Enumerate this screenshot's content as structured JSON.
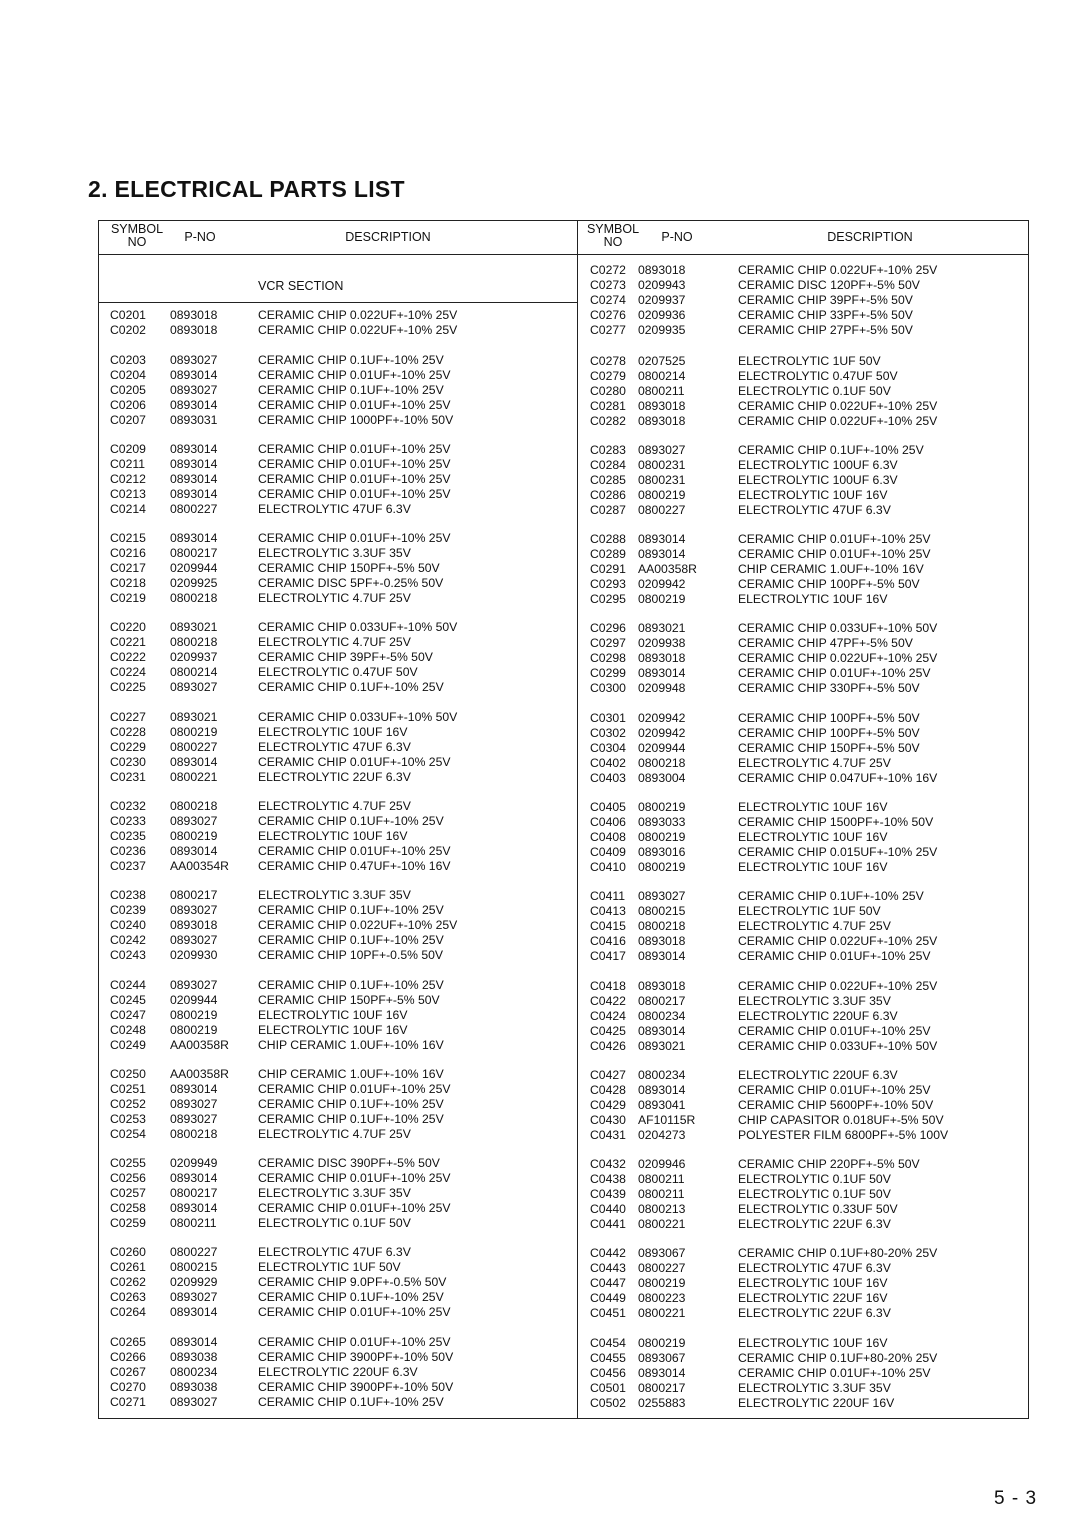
{
  "title": "2. ELECTRICAL PARTS LIST",
  "headers": {
    "symbol": "SYMBOL",
    "no": "NO",
    "pno": "P-NO",
    "description": "DESCRIPTION"
  },
  "left_column": {
    "section_title": "VCR SECTION",
    "groups": [
      [
        [
          "C0201",
          "0893018",
          "CERAMIC CHIP 0.022UF+-10% 25V"
        ],
        [
          "C0202",
          "0893018",
          "CERAMIC CHIP 0.022UF+-10% 25V"
        ]
      ],
      [
        [
          "C0203",
          "0893027",
          "CERAMIC CHIP 0.1UF+-10% 25V"
        ],
        [
          "C0204",
          "0893014",
          "CERAMIC CHIP 0.01UF+-10% 25V"
        ],
        [
          "C0205",
          "0893027",
          "CERAMIC CHIP 0.1UF+-10% 25V"
        ],
        [
          "C0206",
          "0893014",
          "CERAMIC CHIP 0.01UF+-10% 25V"
        ],
        [
          "C0207",
          "0893031",
          "CERAMIC CHIP 1000PF+-10% 50V"
        ]
      ],
      [
        [
          "C0209",
          "0893014",
          "CERAMIC CHIP 0.01UF+-10% 25V"
        ],
        [
          "C0211",
          "0893014",
          "CERAMIC CHIP 0.01UF+-10% 25V"
        ],
        [
          "C0212",
          "0893014",
          "CERAMIC CHIP 0.01UF+-10% 25V"
        ],
        [
          "C0213",
          "0893014",
          "CERAMIC CHIP 0.01UF+-10% 25V"
        ],
        [
          "C0214",
          "0800227",
          "ELECTROLYTIC 47UF 6.3V"
        ]
      ],
      [
        [
          "C0215",
          "0893014",
          "CERAMIC CHIP 0.01UF+-10% 25V"
        ],
        [
          "C0216",
          "0800217",
          "ELECTROLYTIC 3.3UF 35V"
        ],
        [
          "C0217",
          "0209944",
          "CERAMIC CHIP 150PF+-5% 50V"
        ],
        [
          "C0218",
          "0209925",
          "CERAMIC DISC 5PF+-0.25% 50V"
        ],
        [
          "C0219",
          "0800218",
          "ELECTROLYTIC 4.7UF 25V"
        ]
      ],
      [
        [
          "C0220",
          "0893021",
          "CERAMIC CHIP 0.033UF+-10% 50V"
        ],
        [
          "C0221",
          "0800218",
          "ELECTROLYTIC 4.7UF 25V"
        ],
        [
          "C0222",
          "0209937",
          "CERAMIC CHIP 39PF+-5% 50V"
        ],
        [
          "C0224",
          "0800214",
          "ELECTROLYTIC 0.47UF 50V"
        ],
        [
          "C0225",
          "0893027",
          "CERAMIC CHIP 0.1UF+-10% 25V"
        ]
      ],
      [
        [
          "C0227",
          "0893021",
          "CERAMIC CHIP 0.033UF+-10% 50V"
        ],
        [
          "C0228",
          "0800219",
          "ELECTROLYTIC 10UF 16V"
        ],
        [
          "C0229",
          "0800227",
          "ELECTROLYTIC 47UF 6.3V"
        ],
        [
          "C0230",
          "0893014",
          "CERAMIC CHIP 0.01UF+-10% 25V"
        ],
        [
          "C0231",
          "0800221",
          "ELECTROLYTIC 22UF 6.3V"
        ]
      ],
      [
        [
          "C0232",
          "0800218",
          "ELECTROLYTIC 4.7UF 25V"
        ],
        [
          "C0233",
          "0893027",
          "CERAMIC CHIP 0.1UF+-10% 25V"
        ],
        [
          "C0235",
          "0800219",
          "ELECTROLYTIC 10UF 16V"
        ],
        [
          "C0236",
          "0893014",
          "CERAMIC CHIP 0.01UF+-10% 25V"
        ],
        [
          "C0237",
          "AA00354R",
          "CERAMIC CHIP 0.47UF+-10% 16V"
        ]
      ],
      [
        [
          "C0238",
          "0800217",
          "ELECTROLYTIC 3.3UF 35V"
        ],
        [
          "C0239",
          "0893027",
          "CERAMIC CHIP 0.1UF+-10% 25V"
        ],
        [
          "C0240",
          "0893018",
          "CERAMIC CHIP 0.022UF+-10% 25V"
        ],
        [
          "C0242",
          "0893027",
          "CERAMIC CHIP 0.1UF+-10% 25V"
        ],
        [
          "C0243",
          "0209930",
          "CERAMIC CHIP 10PF+-0.5% 50V"
        ]
      ],
      [
        [
          "C0244",
          "0893027",
          "CERAMIC CHIP 0.1UF+-10% 25V"
        ],
        [
          "C0245",
          "0209944",
          "CERAMIC CHIP 150PF+-5% 50V"
        ],
        [
          "C0247",
          "0800219",
          "ELECTROLYTIC 10UF 16V"
        ],
        [
          "C0248",
          "0800219",
          "ELECTROLYTIC 10UF 16V"
        ],
        [
          "C0249",
          "AA00358R",
          "CHIP CERAMIC 1.0UF+-10% 16V"
        ]
      ],
      [
        [
          "C0250",
          "AA00358R",
          "CHIP CERAMIC 1.0UF+-10% 16V"
        ],
        [
          "C0251",
          "0893014",
          "CERAMIC CHIP 0.01UF+-10% 25V"
        ],
        [
          "C0252",
          "0893027",
          "CERAMIC CHIP 0.1UF+-10% 25V"
        ],
        [
          "C0253",
          "0893027",
          "CERAMIC CHIP 0.1UF+-10% 25V"
        ],
        [
          "C0254",
          "0800218",
          "ELECTROLYTIC 4.7UF 25V"
        ]
      ],
      [
        [
          "C0255",
          "0209949",
          "CERAMIC DISC 390PF+-5% 50V"
        ],
        [
          "C0256",
          "0893014",
          "CERAMIC CHIP 0.01UF+-10% 25V"
        ],
        [
          "C0257",
          "0800217",
          "ELECTROLYTIC 3.3UF 35V"
        ],
        [
          "C0258",
          "0893014",
          "CERAMIC CHIP 0.01UF+-10% 25V"
        ],
        [
          "C0259",
          "0800211",
          "ELECTROLYTIC 0.1UF 50V"
        ]
      ],
      [
        [
          "C0260",
          "0800227",
          "ELECTROLYTIC 47UF 6.3V"
        ],
        [
          "C0261",
          "0800215",
          "ELECTROLYTIC 1UF 50V"
        ],
        [
          "C0262",
          "0209929",
          "CERAMIC CHIP 9.0PF+-0.5% 50V"
        ],
        [
          "C0263",
          "0893027",
          "CERAMIC CHIP 0.1UF+-10% 25V"
        ],
        [
          "C0264",
          "0893014",
          "CERAMIC CHIP 0.01UF+-10% 25V"
        ]
      ],
      [
        [
          "C0265",
          "0893014",
          "CERAMIC CHIP 0.01UF+-10% 25V"
        ],
        [
          "C0266",
          "0893038",
          "CERAMIC CHIP 3900PF+-10% 50V"
        ],
        [
          "C0267",
          "0800234",
          "ELECTROLYTIC 220UF 6.3V"
        ],
        [
          "C0270",
          "0893038",
          "CERAMIC CHIP 3900PF+-10% 50V"
        ],
        [
          "C0271",
          "0893027",
          "CERAMIC CHIP 0.1UF+-10% 25V"
        ]
      ]
    ]
  },
  "right_column": {
    "groups": [
      [
        [
          "C0272",
          "0893018",
          "CERAMIC CHIP 0.022UF+-10% 25V"
        ],
        [
          "C0273",
          "0209943",
          "CERAMIC DISC 120PF+-5% 50V"
        ],
        [
          "C0274",
          "0209937",
          "CERAMIC CHIP 39PF+-5% 50V"
        ],
        [
          "C0276",
          "0209936",
          "CERAMIC CHIP 33PF+-5% 50V"
        ],
        [
          "C0277",
          "0209935",
          "CERAMIC CHIP 27PF+-5% 50V"
        ]
      ],
      [
        [
          "C0278",
          "0207525",
          "ELECTROLYTIC 1UF 50V"
        ],
        [
          "C0279",
          "0800214",
          "ELECTROLYTIC 0.47UF 50V"
        ],
        [
          "C0280",
          "0800211",
          "ELECTROLYTIC 0.1UF 50V"
        ],
        [
          "C0281",
          "0893018",
          "CERAMIC CHIP 0.022UF+-10% 25V"
        ],
        [
          "C0282",
          "0893018",
          "CERAMIC CHIP 0.022UF+-10% 25V"
        ]
      ],
      [
        [
          "C0283",
          "0893027",
          "CERAMIC CHIP 0.1UF+-10% 25V"
        ],
        [
          "C0284",
          "0800231",
          "ELECTROLYTIC 100UF 6.3V"
        ],
        [
          "C0285",
          "0800231",
          "ELECTROLYTIC 100UF 6.3V"
        ],
        [
          "C0286",
          "0800219",
          "ELECTROLYTIC 10UF 16V"
        ],
        [
          "C0287",
          "0800227",
          "ELECTROLYTIC 47UF 6.3V"
        ]
      ],
      [
        [
          "C0288",
          "0893014",
          "CERAMIC CHIP 0.01UF+-10% 25V"
        ],
        [
          "C0289",
          "0893014",
          "CERAMIC CHIP 0.01UF+-10% 25V"
        ],
        [
          "C0291",
          "AA00358R",
          "CHIP CERAMIC 1.0UF+-10% 16V"
        ],
        [
          "C0293",
          "0209942",
          "CERAMIC CHIP 100PF+-5% 50V"
        ],
        [
          "C0295",
          "0800219",
          "ELECTROLYTIC 10UF 16V"
        ]
      ],
      [
        [
          "C0296",
          "0893021",
          "CERAMIC CHIP 0.033UF+-10% 50V"
        ],
        [
          "C0297",
          "0209938",
          "CERAMIC CHIP 47PF+-5% 50V"
        ],
        [
          "C0298",
          "0893018",
          "CERAMIC CHIP 0.022UF+-10% 25V"
        ],
        [
          "C0299",
          "0893014",
          "CERAMIC CHIP 0.01UF+-10% 25V"
        ],
        [
          "C0300",
          "0209948",
          "CERAMIC CHIP 330PF+-5% 50V"
        ]
      ],
      [
        [
          "C0301",
          "0209942",
          "CERAMIC CHIP 100PF+-5% 50V"
        ],
        [
          "C0302",
          "0209942",
          "CERAMIC CHIP 100PF+-5% 50V"
        ],
        [
          "C0304",
          "0209944",
          "CERAMIC CHIP 150PF+-5% 50V"
        ],
        [
          "C0402",
          "0800218",
          "ELECTROLYTIC 4.7UF 25V"
        ],
        [
          "C0403",
          "0893004",
          "CERAMIC CHIP 0.047UF+-10% 16V"
        ]
      ],
      [
        [
          "C0405",
          "0800219",
          "ELECTROLYTIC 10UF 16V"
        ],
        [
          "C0406",
          "0893033",
          "CERAMIC CHIP 1500PF+-10% 50V"
        ],
        [
          "C0408",
          "0800219",
          "ELECTROLYTIC 10UF 16V"
        ],
        [
          "C0409",
          "0893016",
          "CERAMIC CHIP 0.015UF+-10% 25V"
        ],
        [
          "C0410",
          "0800219",
          "ELECTROLYTIC 10UF 16V"
        ]
      ],
      [
        [
          "C0411",
          "0893027",
          "CERAMIC CHIP 0.1UF+-10% 25V"
        ],
        [
          "C0413",
          "0800215",
          "ELECTROLYTIC 1UF 50V"
        ],
        [
          "C0415",
          "0800218",
          "ELECTROLYTIC 4.7UF 25V"
        ],
        [
          "C0416",
          "0893018",
          "CERAMIC CHIP 0.022UF+-10% 25V"
        ],
        [
          "C0417",
          "0893014",
          "CERAMIC CHIP 0.01UF+-10% 25V"
        ]
      ],
      [
        [
          "C0418",
          "0893018",
          "CERAMIC CHIP 0.022UF+-10% 25V"
        ],
        [
          "C0422",
          "0800217",
          "ELECTROLYTIC 3.3UF 35V"
        ],
        [
          "C0424",
          "0800234",
          "ELECTROLYTIC 220UF 6.3V"
        ],
        [
          "C0425",
          "0893014",
          "CERAMIC CHIP 0.01UF+-10% 25V"
        ],
        [
          "C0426",
          "0893021",
          "CERAMIC CHIP 0.033UF+-10% 50V"
        ]
      ],
      [
        [
          "C0427",
          "0800234",
          "ELECTROLYTIC 220UF 6.3V"
        ],
        [
          "C0428",
          "0893014",
          "CERAMIC CHIP 0.01UF+-10% 25V"
        ],
        [
          "C0429",
          "0893041",
          "CERAMIC CHIP 5600PF+-10% 50V"
        ],
        [
          "C0430",
          "AF10115R",
          "CHIP CAPASITOR 0.018UF+-5% 50V"
        ],
        [
          "C0431",
          "0204273",
          "POLYESTER FILM 6800PF+-5% 100V"
        ]
      ],
      [
        [
          "C0432",
          "0209946",
          "CERAMIC CHIP 220PF+-5% 50V"
        ],
        [
          "C0438",
          "0800211",
          "ELECTROLYTIC 0.1UF 50V"
        ],
        [
          "C0439",
          "0800211",
          "ELECTROLYTIC 0.1UF 50V"
        ],
        [
          "C0440",
          "0800213",
          "ELECTROLYTIC 0.33UF 50V"
        ],
        [
          "C0441",
          "0800221",
          "ELECTROLYTIC 22UF 6.3V"
        ]
      ],
      [
        [
          "C0442",
          "0893067",
          "CERAMIC CHIP 0.1UF+80-20% 25V"
        ],
        [
          "C0443",
          "0800227",
          "ELECTROLYTIC 47UF 6.3V"
        ],
        [
          "C0447",
          "0800219",
          "ELECTROLYTIC 10UF 16V"
        ],
        [
          "C0449",
          "0800223",
          "ELECTROLYTIC 22UF 16V"
        ],
        [
          "C0451",
          "0800221",
          "ELECTROLYTIC 22UF 6.3V"
        ]
      ],
      [
        [
          "C0454",
          "0800219",
          "ELECTROLYTIC 10UF 16V"
        ],
        [
          "C0455",
          "0893067",
          "CERAMIC CHIP 0.1UF+80-20% 25V"
        ],
        [
          "C0456",
          "0893014",
          "CERAMIC CHIP 0.01UF+-10% 25V"
        ],
        [
          "C0501",
          "0800217",
          "ELECTROLYTIC 3.3UF 35V"
        ],
        [
          "C0502",
          "0255883",
          "ELECTROLYTIC 220UF 16V"
        ]
      ]
    ]
  },
  "page_number": "5 - 3"
}
